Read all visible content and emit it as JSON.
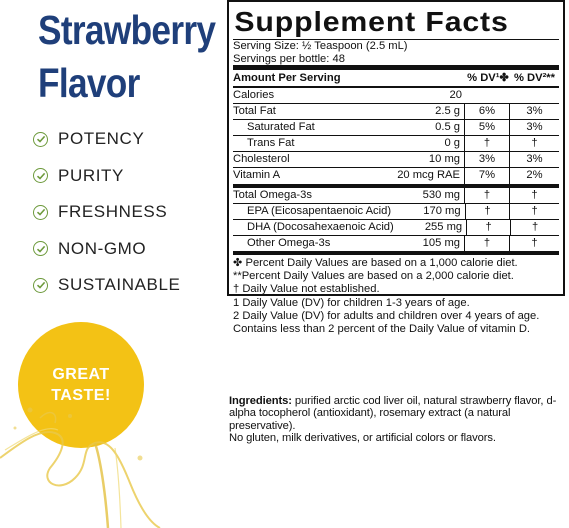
{
  "left": {
    "flavor_line1": "Strawberry",
    "flavor_line2": "Flavor",
    "claims": [
      "POTENCY",
      "PURITY",
      "FRESHNESS",
      "NON-GMO",
      "SUSTAINABLE"
    ],
    "badge_line1": "GREAT",
    "badge_line2": "TASTE!",
    "colors": {
      "flavor_text": "#1f3f7a",
      "check": "#6d9a3c",
      "badge": "#f3c215",
      "splash": "#e8c84a"
    }
  },
  "facts": {
    "title": "Supplement Facts",
    "serving_size": "Serving Size: ½ Teaspoon (2.5 mL)",
    "servings_per": "Servings per bottle: 48",
    "header": {
      "name": "Amount Per Serving",
      "dv1": "% DV¹✤",
      "dv2": "% DV²**"
    },
    "rows1": [
      {
        "name": "Calories",
        "amt": "20",
        "dv1": "",
        "dv2": ""
      },
      {
        "name": "Total Fat",
        "amt": "2.5 g",
        "dv1": "6%",
        "dv2": "3%"
      },
      {
        "name": "Saturated Fat",
        "amt": "0.5 g",
        "dv1": "5%",
        "dv2": "3%"
      },
      {
        "name": "Trans Fat",
        "amt": "0 g",
        "dv1": "†",
        "dv2": "†"
      },
      {
        "name": "Cholesterol",
        "amt": "10 mg",
        "dv1": "3%",
        "dv2": "3%"
      },
      {
        "name": "Vitamin A",
        "amt": "20 mcg RAE",
        "dv1": "7%",
        "dv2": "2%"
      }
    ],
    "rows2": [
      {
        "name": "Total Omega-3s",
        "amt": "530 mg",
        "dv1": "†",
        "dv2": "†"
      },
      {
        "name": "EPA (Eicosapentaenoic Acid)",
        "amt": "170 mg",
        "dv1": "†",
        "dv2": "†"
      },
      {
        "name": "DHA (Docosahexaenoic Acid)",
        "amt": "255 mg",
        "dv1": "†",
        "dv2": "†"
      },
      {
        "name": "Other Omega-3s",
        "amt": "105 mg",
        "dv1": "†",
        "dv2": "†"
      }
    ],
    "notes": [
      "✤ Percent Daily Values are based on a 1,000 calorie diet.",
      "**Percent Daily Values are based on a 2,000 calorie diet.",
      "†  Daily Value not established.",
      "1  Daily Value (DV) for children 1-3 years of age.",
      "2  Daily Value (DV) for adults and children over 4 years of age.",
      "Contains less than 2 percent of the Daily Value of vitamin D."
    ]
  },
  "ingredients": {
    "label": "Ingredients:",
    "text": " purified arctic cod liver oil, natural strawberry flavor, d-alpha tocopherol (antioxidant), rosemary extract (a natural preservative).",
    "note": "No gluten, milk derivatives, or artificial colors or flavors."
  }
}
